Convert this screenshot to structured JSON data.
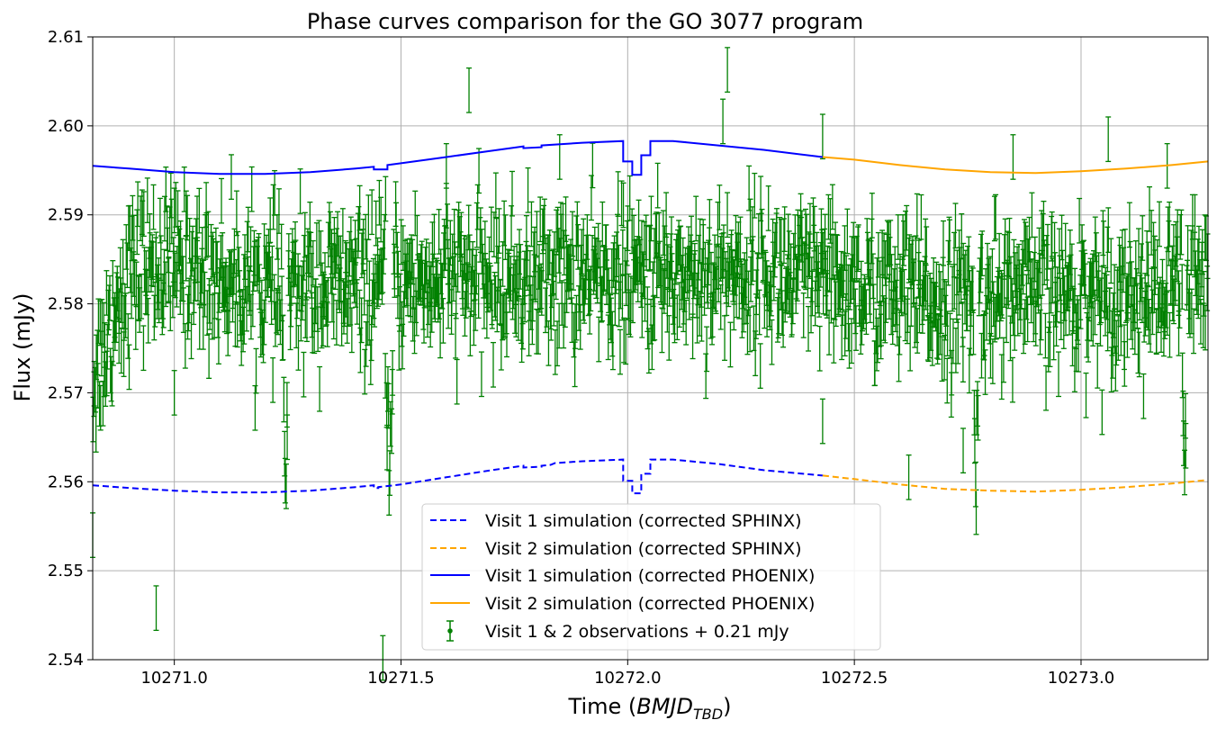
{
  "chart_data": {
    "type": "line",
    "title": "Phase curves comparison for the GO 3077 program",
    "xlabel_prefix": "Time (",
    "xlabel_main": "BMJD",
    "xlabel_sub": "TBD",
    "xlabel_suffix": ")",
    "ylabel": "Flux (mJy)",
    "xlim": [
      10270.82,
      10273.28
    ],
    "ylim": [
      2.54,
      2.61
    ],
    "xticks": [
      10271.0,
      10271.5,
      10272.0,
      10272.5,
      10273.0
    ],
    "xtick_labels": [
      "10271.0",
      "10271.5",
      "10272.0",
      "10272.5",
      "10273.0"
    ],
    "yticks": [
      2.54,
      2.55,
      2.56,
      2.57,
      2.58,
      2.59,
      2.6,
      2.61
    ],
    "ytick_labels": [
      "2.54",
      "2.55",
      "2.56",
      "2.57",
      "2.58",
      "2.59",
      "2.60",
      "2.61"
    ],
    "grid": true,
    "legend_position": "bottom-center",
    "colors": {
      "visit1": "#0000ff",
      "visit2": "#ffa500",
      "observations": "#008000"
    },
    "series": [
      {
        "name": "Visit 1 simulation (corrected SPHINX)",
        "style": "dashed",
        "color": "#0000ff",
        "points": [
          [
            10270.82,
            2.5596
          ],
          [
            10270.9,
            2.5593
          ],
          [
            10271.0,
            2.559
          ],
          [
            10271.1,
            2.5588
          ],
          [
            10271.2,
            2.5588
          ],
          [
            10271.3,
            2.559
          ],
          [
            10271.4,
            2.5594
          ],
          [
            10271.44,
            2.5596
          ],
          [
            10271.44,
            2.5593
          ],
          [
            10271.45,
            2.5593
          ],
          [
            10271.45,
            2.5594
          ],
          [
            10271.5,
            2.5597
          ],
          [
            10271.6,
            2.5605
          ],
          [
            10271.7,
            2.5613
          ],
          [
            10271.77,
            2.5618
          ],
          [
            10271.77,
            2.5616
          ],
          [
            10271.81,
            2.5617
          ],
          [
            10271.81,
            2.5618
          ],
          [
            10271.83,
            2.5619
          ],
          [
            10271.84,
            2.5621
          ],
          [
            10271.9,
            2.5623
          ],
          [
            10271.99,
            2.5625
          ],
          [
            10271.99,
            2.5601
          ],
          [
            10272.01,
            2.5601
          ],
          [
            10272.01,
            2.5587
          ],
          [
            10272.03,
            2.5587
          ],
          [
            10272.03,
            2.5609
          ],
          [
            10272.05,
            2.5609
          ],
          [
            10272.05,
            2.5625
          ],
          [
            10272.1,
            2.5625
          ],
          [
            10272.2,
            2.562
          ],
          [
            10272.3,
            2.5613
          ],
          [
            10272.43,
            2.5607
          ]
        ]
      },
      {
        "name": "Visit 2 simulation (corrected SPHINX)",
        "style": "dashed",
        "color": "#ffa500",
        "points": [
          [
            10272.43,
            2.5607
          ],
          [
            10272.5,
            2.5603
          ],
          [
            10272.6,
            2.5597
          ],
          [
            10272.7,
            2.5592
          ],
          [
            10272.8,
            2.559
          ],
          [
            10272.9,
            2.5589
          ],
          [
            10273.0,
            2.5591
          ],
          [
            10273.1,
            2.5594
          ],
          [
            10273.2,
            2.5598
          ],
          [
            10273.28,
            2.5602
          ]
        ]
      },
      {
        "name": "Visit 1 simulation (corrected PHOENIX)",
        "style": "solid",
        "color": "#0000ff",
        "points": [
          [
            10270.82,
            2.5955
          ],
          [
            10270.9,
            2.5952
          ],
          [
            10271.0,
            2.5948
          ],
          [
            10271.1,
            2.5946
          ],
          [
            10271.2,
            2.5946
          ],
          [
            10271.3,
            2.5948
          ],
          [
            10271.4,
            2.5952
          ],
          [
            10271.44,
            2.5954
          ],
          [
            10271.44,
            2.5951
          ],
          [
            10271.47,
            2.5951
          ],
          [
            10271.47,
            2.5956
          ],
          [
            10271.5,
            2.5958
          ],
          [
            10271.6,
            2.5965
          ],
          [
            10271.7,
            2.5972
          ],
          [
            10271.77,
            2.5977
          ],
          [
            10271.77,
            2.5975
          ],
          [
            10271.81,
            2.5976
          ],
          [
            10271.81,
            2.5978
          ],
          [
            10271.9,
            2.5981
          ],
          [
            10271.99,
            2.5983
          ],
          [
            10271.99,
            2.596
          ],
          [
            10272.01,
            2.596
          ],
          [
            10272.01,
            2.5945
          ],
          [
            10272.03,
            2.5945
          ],
          [
            10272.03,
            2.5967
          ],
          [
            10272.05,
            2.5967
          ],
          [
            10272.05,
            2.5983
          ],
          [
            10272.1,
            2.5983
          ],
          [
            10272.2,
            2.5978
          ],
          [
            10272.3,
            2.5973
          ],
          [
            10272.43,
            2.5965
          ]
        ]
      },
      {
        "name": "Visit 2 simulation (corrected PHOENIX)",
        "style": "solid",
        "color": "#ffa500",
        "points": [
          [
            10272.43,
            2.5965
          ],
          [
            10272.5,
            2.5962
          ],
          [
            10272.6,
            2.5956
          ],
          [
            10272.7,
            2.5951
          ],
          [
            10272.8,
            2.5948
          ],
          [
            10272.9,
            2.5947
          ],
          [
            10273.0,
            2.5949
          ],
          [
            10273.1,
            2.5952
          ],
          [
            10273.2,
            2.5956
          ],
          [
            10273.28,
            2.596
          ]
        ]
      },
      {
        "name": "Visit 1 & 2 observations + 0.21 mJy",
        "style": "errorbar",
        "color": "#008000",
        "baseline": [
          [
            10270.82,
            2.571
          ],
          [
            10270.85,
            2.576
          ],
          [
            10270.88,
            2.581
          ],
          [
            10270.92,
            2.584
          ],
          [
            10271.0,
            2.5845
          ],
          [
            10271.1,
            2.583
          ],
          [
            10271.2,
            2.582
          ],
          [
            10271.25,
            2.581
          ],
          [
            10271.3,
            2.582
          ],
          [
            10271.45,
            2.582
          ],
          [
            10271.5,
            2.5825
          ],
          [
            10272.0,
            2.583
          ],
          [
            10272.3,
            2.5835
          ],
          [
            10272.45,
            2.582
          ],
          [
            10272.6,
            2.581
          ],
          [
            10272.75,
            2.58
          ],
          [
            10272.8,
            2.581
          ],
          [
            10273.0,
            2.581
          ],
          [
            10273.2,
            2.5815
          ],
          [
            10273.28,
            2.582
          ]
        ],
        "transits": [
          [
            10271.245,
            0.018,
            0.006
          ],
          [
            10271.475,
            0.018,
            0.008
          ],
          [
            10272.768,
            0.018,
            0.006
          ],
          [
            10273.228,
            0.017,
            0.005
          ]
        ],
        "scatter_sigma": 0.004,
        "errorbar_halfwidth": 0.0025,
        "outliers": [
          [
            10270.82,
            2.554
          ],
          [
            10270.96,
            2.5458
          ],
          [
            10271.46,
            2.5402
          ],
          [
            10271.65,
            2.604
          ],
          [
            10272.22,
            2.6063
          ],
          [
            10272.21,
            2.6005
          ],
          [
            10272.43,
            2.5988
          ],
          [
            10272.43,
            2.5668
          ],
          [
            10272.62,
            2.5605
          ],
          [
            10272.74,
            2.5635
          ],
          [
            10272.85,
            2.5965
          ],
          [
            10273.06,
            2.5985
          ],
          [
            10273.19,
            2.5955
          ],
          [
            10271.0,
            2.57
          ],
          [
            10271.6,
            2.5955
          ],
          [
            10271.85,
            2.5965
          ]
        ]
      }
    ]
  }
}
